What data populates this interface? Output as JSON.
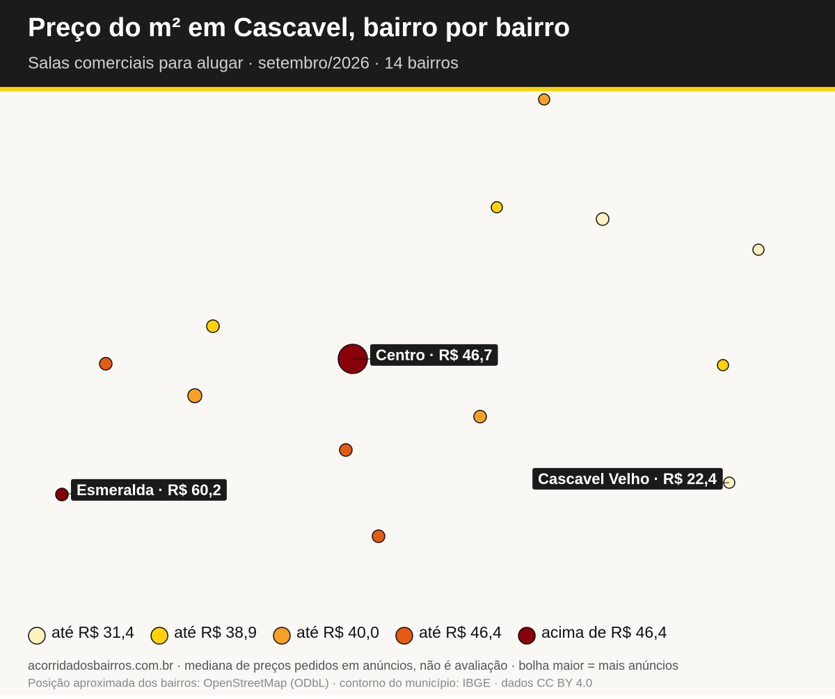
{
  "header": {
    "title": "Preço do m² em Cascavel, bairro por bairro",
    "subtitle": "Salas comerciais para alugar · setembro/2026 · 14 bairros"
  },
  "callouts": [
    "Centro · R$ 46,7",
    "Esmeralda · R$ 60,2",
    "Cascavel Velho · R$ 22,4"
  ],
  "legend": {
    "items": [
      {
        "label": "até R$ 31,4",
        "color": "#fff2bf"
      },
      {
        "label": "até R$ 38,9",
        "color": "#ffd20a"
      },
      {
        "label": "até R$ 40,0",
        "color": "#f8a026"
      },
      {
        "label": "até R$ 46,4",
        "color": "#e45b13"
      },
      {
        "label": "acima de R$ 46,4",
        "color": "#8a0008"
      }
    ]
  },
  "footer": [
    "acorridadosbairros.com.br · mediana de preços pedidos em anúncios, não é avaliação · bolha maior = mais anúncios",
    "Posição aproximada dos bairros: OpenStreetMap (ODbL) · contorno do município: IBGE · dados CC BY 4.0"
  ]
}
